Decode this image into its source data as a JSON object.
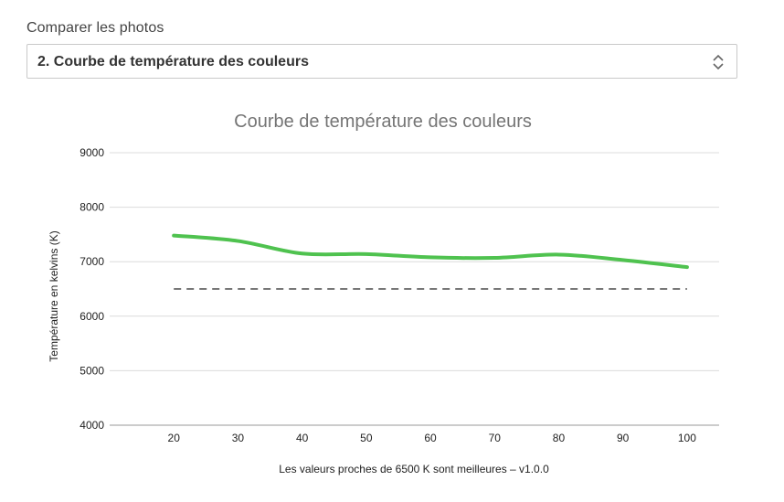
{
  "selector": {
    "label": "Comparer les photos",
    "value": "2. Courbe de température des couleurs",
    "chevron_icon": "updown-chevron-icon"
  },
  "chart_data": {
    "type": "line",
    "title": "Courbe de température des couleurs",
    "xlabel": "Les valeurs proches de 6500 K sont meilleures – v1.0.0",
    "ylabel": "Température en kelvins (K)",
    "xlim": [
      10,
      105
    ],
    "ylim": [
      4000,
      9000
    ],
    "x_ticks": [
      20,
      30,
      40,
      50,
      60,
      70,
      80,
      90,
      100
    ],
    "y_ticks": [
      4000,
      5000,
      6000,
      7000,
      8000,
      9000
    ],
    "grid": true,
    "legend": "none",
    "series": [
      {
        "color": "#4fc24f",
        "style": "solid",
        "x": [
          20,
          30,
          40,
          50,
          60,
          70,
          80,
          90,
          100
        ],
        "y": [
          7480,
          7380,
          7150,
          7140,
          7080,
          7070,
          7130,
          7030,
          6900
        ]
      },
      {
        "color": "#777777",
        "style": "dashed",
        "x": [
          20,
          100
        ],
        "y": [
          6500,
          6500
        ]
      }
    ]
  }
}
